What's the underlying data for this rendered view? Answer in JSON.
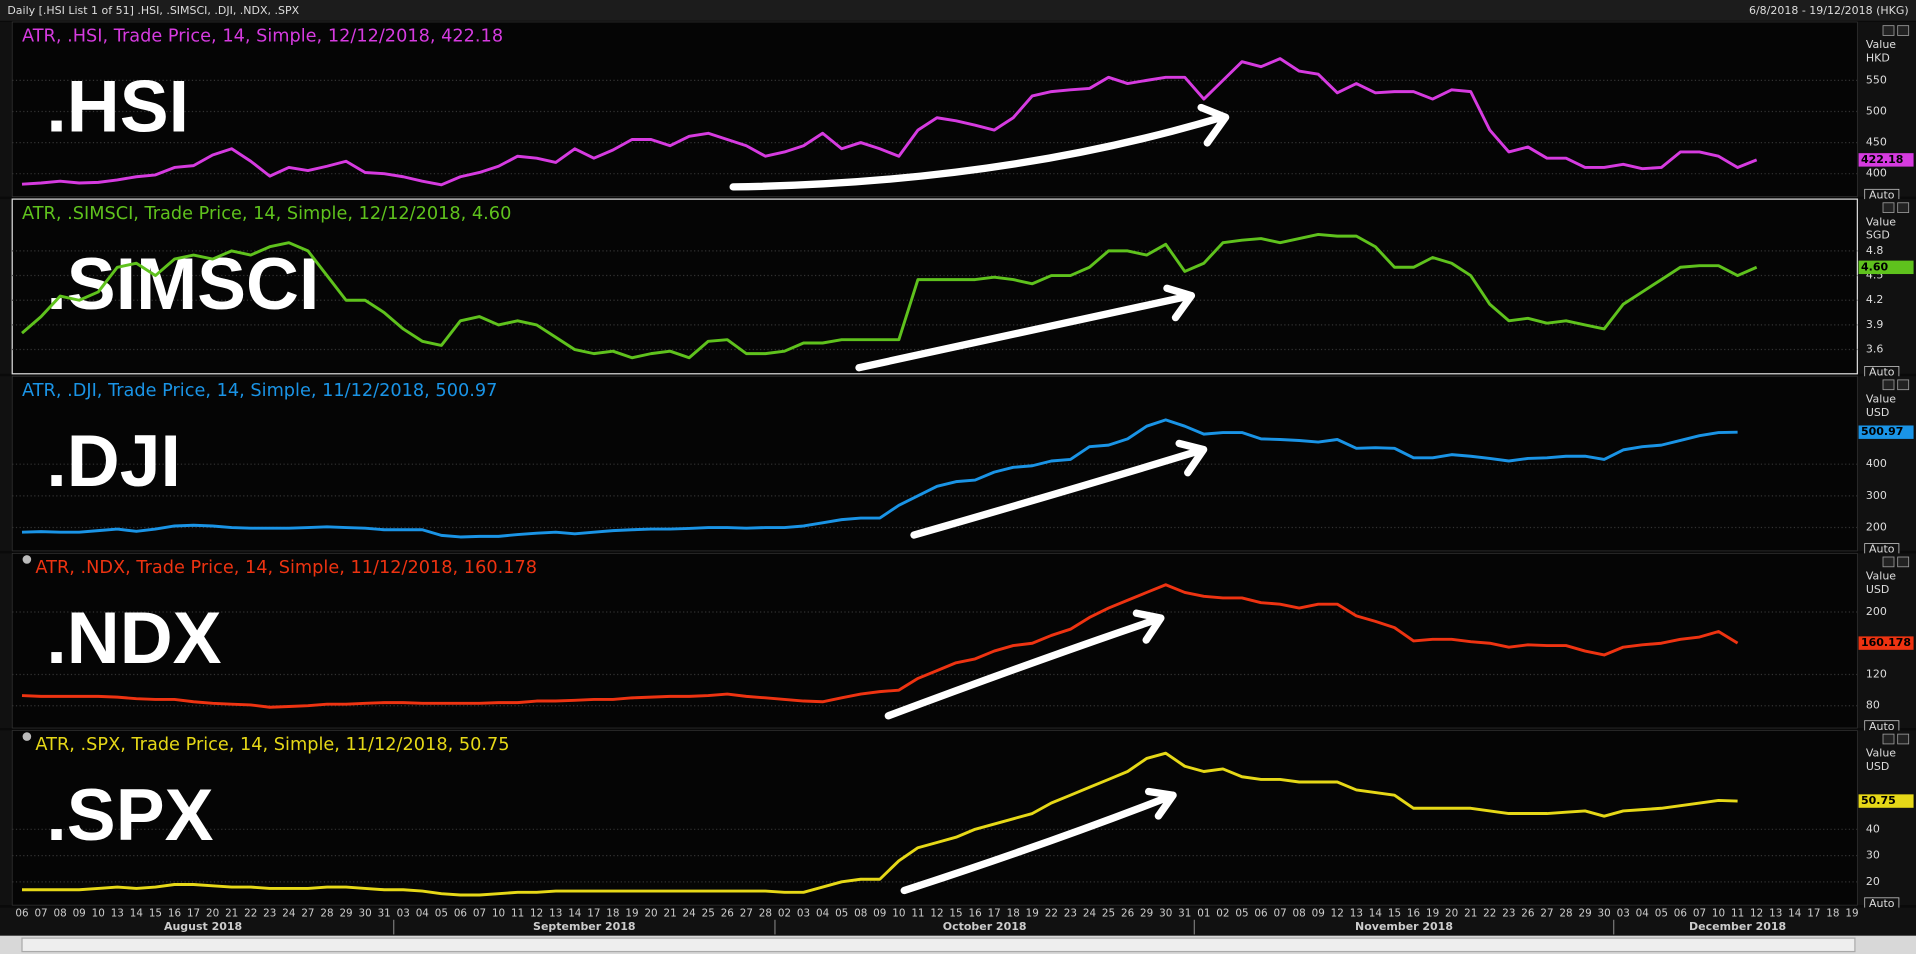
{
  "header": {
    "title": "Daily [.HSI List 1 of 51] .HSI, .SIMSCI, .DJI, .NDX, .SPX",
    "range": "6/8/2018 - 19/12/2018 (HKG)"
  },
  "chart_data": [
    {
      "type": "line",
      "title": "ATR, .HSI, Trade Price,  14, Simple, 12/12/2018, 422.18",
      "label": ".HSI",
      "y_axis_title": "Value",
      "unit": "HKD",
      "color": "#d63be0",
      "button": "Auto",
      "ylim": [
        365,
        640
      ],
      "yticks": [
        400,
        450,
        500,
        550
      ],
      "values": [
        383,
        385,
        388,
        385,
        386,
        390,
        395,
        398,
        410,
        413,
        430,
        440,
        420,
        396,
        410,
        405,
        412,
        420,
        402,
        400,
        395,
        388,
        382,
        395,
        402,
        412,
        428,
        425,
        418,
        440,
        425,
        438,
        455,
        455,
        445,
        460,
        465,
        455,
        445,
        428,
        435,
        445,
        465,
        440,
        450,
        440,
        428,
        470,
        490,
        485,
        478,
        470,
        490,
        525,
        532,
        535,
        537,
        555,
        545,
        550,
        555,
        555,
        520,
        550,
        580,
        572,
        585,
        565,
        560,
        530,
        545,
        530,
        532,
        532,
        520,
        535,
        532,
        470,
        435,
        443,
        425,
        425,
        410,
        410,
        415,
        408,
        410,
        435,
        435,
        428,
        410,
        422.18,
        null,
        null,
        null,
        null,
        null
      ]
    },
    {
      "type": "line",
      "title": "ATR, .SIMSCI, Trade Price,  14, Simple, 12/12/2018, 4.60",
      "label": ".SIMSCI",
      "y_axis_title": "Value",
      "unit": "SGD",
      "color": "#5fc21d",
      "button": "Auto",
      "ylim": [
        3.32,
        5.4
      ],
      "yticks": [
        3.6,
        3.9,
        4.2,
        4.5,
        4.8
      ],
      "values": [
        3.8,
        4.0,
        4.25,
        4.2,
        4.3,
        4.6,
        4.65,
        4.5,
        4.7,
        4.75,
        4.7,
        4.8,
        4.75,
        4.85,
        4.9,
        4.8,
        4.5,
        4.2,
        4.2,
        4.05,
        3.85,
        3.7,
        3.65,
        3.95,
        4.0,
        3.9,
        3.95,
        3.9,
        3.75,
        3.6,
        3.55,
        3.58,
        3.5,
        3.55,
        3.58,
        3.5,
        3.7,
        3.72,
        3.55,
        3.55,
        3.58,
        3.68,
        3.68,
        3.72,
        3.72,
        3.72,
        3.72,
        4.45,
        4.45,
        4.45,
        4.45,
        4.48,
        4.45,
        4.4,
        4.5,
        4.5,
        4.6,
        4.8,
        4.8,
        4.75,
        4.88,
        4.55,
        4.65,
        4.9,
        4.93,
        4.95,
        4.9,
        4.95,
        5.0,
        4.98,
        4.98,
        4.85,
        4.6,
        4.6,
        4.72,
        4.65,
        4.5,
        4.15,
        3.95,
        3.98,
        3.92,
        3.95,
        3.9,
        3.85,
        4.15,
        4.3,
        4.45,
        4.6,
        4.62,
        4.62,
        4.5,
        4.6,
        null,
        null,
        null,
        null,
        null
      ],
      "value_labels": [
        null,
        null,
        null,
        null,
        null,
        null,
        null,
        null,
        null,
        null,
        null,
        null,
        null,
        null,
        null,
        null,
        null,
        null,
        null,
        null,
        null,
        null,
        null,
        null,
        null,
        null,
        null,
        null,
        null,
        null,
        null,
        null,
        null,
        null,
        null,
        null,
        null,
        null,
        null,
        null,
        null,
        null,
        null,
        null,
        null,
        null,
        null,
        null,
        null,
        null,
        null,
        null,
        null,
        null,
        null,
        null,
        null,
        null,
        null,
        null,
        null,
        null,
        null,
        null,
        null,
        null,
        null,
        null,
        null,
        null,
        null,
        null,
        null,
        null,
        null,
        null,
        null,
        null,
        null,
        null,
        null,
        null,
        null,
        null,
        null,
        null,
        null,
        null,
        null,
        null,
        null,
        "4.60",
        null,
        null,
        null,
        null,
        null
      ]
    },
    {
      "type": "line",
      "title": "ATR, .DJI, Trade Price,  14, Simple, 11/12/2018, 500.97",
      "label": ".DJI",
      "y_axis_title": "Value",
      "unit": "USD",
      "color": "#1a94e6",
      "button": "Auto",
      "ylim": [
        130,
        670
      ],
      "yticks": [
        200,
        300,
        400
      ],
      "values": [
        185,
        187,
        185,
        185,
        190,
        195,
        188,
        195,
        205,
        207,
        205,
        200,
        198,
        198,
        198,
        200,
        202,
        200,
        198,
        193,
        193,
        193,
        175,
        170,
        172,
        172,
        178,
        182,
        185,
        180,
        185,
        190,
        193,
        195,
        195,
        197,
        200,
        200,
        198,
        200,
        200,
        205,
        215,
        225,
        230,
        230,
        270,
        300,
        330,
        345,
        350,
        375,
        390,
        395,
        410,
        415,
        455,
        460,
        480,
        520,
        540,
        520,
        495,
        500,
        500,
        480,
        478,
        475,
        470,
        478,
        450,
        452,
        450,
        420,
        420,
        430,
        425,
        418,
        410,
        418,
        420,
        425,
        425,
        415,
        445,
        455,
        460,
        475,
        490,
        500,
        500.97,
        null,
        null,
        null,
        null,
        null,
        null
      ]
    },
    {
      "type": "line",
      "title": "ATR, .NDX, Trade Price,  14, Simple, 11/12/2018, 160.178",
      "label": ".NDX",
      "y_axis_title": "Value",
      "unit": "USD",
      "color": "#ee3311",
      "button": "Auto",
      "ylim": [
        53,
        272
      ],
      "yticks": [
        80,
        120,
        200
      ],
      "values": [
        93,
        92,
        92,
        92,
        92,
        91,
        89,
        88,
        88,
        85,
        83,
        82,
        81,
        78,
        79,
        80,
        82,
        82,
        83,
        84,
        84,
        83,
        83,
        83,
        83,
        84,
        84,
        86,
        86,
        87,
        88,
        88,
        90,
        91,
        92,
        92,
        93,
        95,
        92,
        90,
        88,
        86,
        85,
        90,
        95,
        98,
        100,
        115,
        125,
        135,
        140,
        150,
        157,
        160,
        170,
        178,
        193,
        205,
        215,
        225,
        235,
        225,
        220,
        218,
        218,
        212,
        210,
        205,
        210,
        210,
        195,
        188,
        180,
        163,
        165,
        165,
        162,
        160,
        155,
        158,
        157,
        157,
        150,
        145,
        155,
        158,
        160,
        165,
        168,
        175,
        160.178,
        null,
        null,
        null,
        null,
        null,
        null
      ]
    },
    {
      "type": "line",
      "title": "ATR, .SPX, Trade Price,  14, Simple, 11/12/2018, 50.75",
      "label": ".SPX",
      "y_axis_title": "Value",
      "unit": "USD",
      "color": "#e6d817",
      "button": "Auto",
      "ylim": [
        11.6,
        76.7
      ],
      "yticks": [
        20,
        30,
        40
      ],
      "values": [
        17,
        17,
        17,
        17,
        17.5,
        18,
        17.5,
        18,
        19,
        19,
        18.5,
        18,
        18,
        17.5,
        17.5,
        17.5,
        18,
        18,
        17.5,
        17,
        17,
        16.5,
        15.5,
        15,
        15,
        15.5,
        16,
        16,
        16.5,
        16.5,
        16.5,
        16.5,
        16.5,
        16.5,
        16.5,
        16.5,
        16.5,
        16.5,
        16.5,
        16.5,
        16,
        16,
        18,
        20,
        21,
        21,
        28,
        33,
        35,
        37,
        40,
        42,
        44,
        46,
        50,
        53,
        56,
        59,
        62,
        67,
        69,
        64,
        62,
        63,
        60,
        59,
        59,
        58,
        58,
        58,
        55,
        54,
        53,
        48,
        48,
        48,
        48,
        47,
        46,
        46,
        46,
        46.5,
        47,
        45,
        47,
        47.5,
        48,
        49,
        50,
        51,
        50.75,
        null,
        null,
        null,
        null,
        null,
        null
      ],
      "categories": [
        "06",
        "07",
        "08",
        "09",
        "10",
        "13",
        "14",
        "15",
        "16",
        "17",
        "20",
        "21",
        "22",
        "23",
        "24",
        "27",
        "28",
        "29",
        "30",
        "31",
        "03",
        "04",
        "05",
        "06",
        "07",
        "10",
        "11",
        "12",
        "13",
        "14",
        "17",
        "18",
        "19",
        "20",
        "21",
        "24",
        "25",
        "26",
        "27",
        "28",
        "02",
        "03",
        "04",
        "05",
        "08",
        "09",
        "10",
        "11",
        "12",
        "15",
        "16",
        "17",
        "18",
        "19",
        "22",
        "23",
        "24",
        "25",
        "26",
        "29",
        "30",
        "31",
        "01",
        "02",
        "05",
        "06",
        "07",
        "08",
        "09",
        "12",
        "13",
        "14",
        "15",
        "16",
        "19",
        "20",
        "21",
        "22",
        "23",
        "26",
        "27",
        "28",
        "29",
        "30",
        "03",
        "04",
        "05",
        "06",
        "07",
        "10",
        "11",
        "12",
        "13",
        "14",
        "17",
        "18",
        "19"
      ],
      "months": [
        "August 2018",
        "September 2018",
        "October 2018",
        "November 2018",
        "December 2018"
      ]
    }
  ]
}
